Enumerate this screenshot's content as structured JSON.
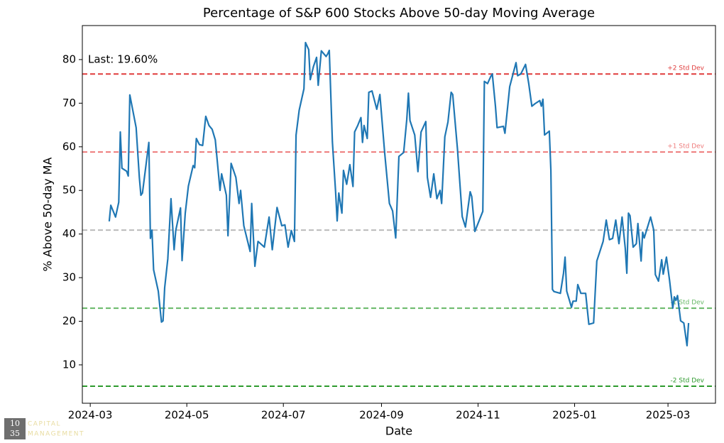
{
  "chart_data": {
    "type": "line",
    "title": "Percentage of S&P 600 Stocks Above 50-day Moving Average",
    "x_label": "Date",
    "y_label": "% Above 50-day MA",
    "annotation": "Last: 19.60%",
    "color": "#1f77b4",
    "xlim": [
      "2024-02-25",
      "2025-03-31"
    ],
    "xticks": [
      {
        "value": "2024-03-01",
        "label": "2024-03"
      },
      {
        "value": "2024-05-01",
        "label": "2024-05"
      },
      {
        "value": "2024-07-01",
        "label": "2024-07"
      },
      {
        "value": "2024-09-01",
        "label": "2024-09"
      },
      {
        "value": "2024-11-01",
        "label": "2024-11"
      },
      {
        "value": "2025-01-01",
        "label": "2025-01"
      },
      {
        "value": "2025-03-01",
        "label": "2025-03"
      }
    ],
    "ylim": [
      1.2,
      87.8
    ],
    "yticks": [
      10,
      20,
      30,
      40,
      50,
      60,
      70,
      80
    ],
    "hlines": [
      {
        "value": 76.7,
        "color": "#e03c3c",
        "label": "+2 Std Dev"
      },
      {
        "value": 58.8,
        "color": "#ee7b7b",
        "label": "+1 Std Dev"
      },
      {
        "value": 40.9,
        "color": "#bbbbbb"
      },
      {
        "value": 23.0,
        "color": "#66b866",
        "label": "-1 Std Dev"
      },
      {
        "value": 5.1,
        "color": "#2e9a2e",
        "label": "-2 Std Dev"
      }
    ],
    "x": [
      "2024-03-13",
      "2024-03-14",
      "2024-03-17",
      "2024-03-19",
      "2024-03-20",
      "2024-03-21",
      "2024-03-24",
      "2024-03-25",
      "2024-03-26",
      "2024-03-30",
      "2024-04-01",
      "2024-04-02",
      "2024-04-03",
      "2024-04-07",
      "2024-04-08",
      "2024-04-09",
      "2024-04-10",
      "2024-04-13",
      "2024-04-15",
      "2024-04-16",
      "2024-04-17",
      "2024-04-19",
      "2024-04-21",
      "2024-04-23",
      "2024-04-24",
      "2024-04-27",
      "2024-04-28",
      "2024-04-30",
      "2024-05-02",
      "2024-05-05",
      "2024-05-06",
      "2024-05-07",
      "2024-05-09",
      "2024-05-11",
      "2024-05-13",
      "2024-05-15",
      "2024-05-17",
      "2024-05-19",
      "2024-05-22",
      "2024-05-23",
      "2024-05-26",
      "2024-05-27",
      "2024-05-29",
      "2024-06-01",
      "2024-06-03",
      "2024-06-04",
      "2024-06-06",
      "2024-06-10",
      "2024-06-11",
      "2024-06-13",
      "2024-06-15",
      "2024-06-19",
      "2024-06-22",
      "2024-06-24",
      "2024-06-27",
      "2024-06-30",
      "2024-07-02",
      "2024-07-04",
      "2024-07-06",
      "2024-07-08",
      "2024-07-09",
      "2024-07-11",
      "2024-07-14",
      "2024-07-15",
      "2024-07-17",
      "2024-07-18",
      "2024-07-20",
      "2024-07-22",
      "2024-07-23",
      "2024-07-25",
      "2024-07-28",
      "2024-07-29",
      "2024-07-30",
      "2024-08-01",
      "2024-08-03",
      "2024-08-04",
      "2024-08-05",
      "2024-08-07",
      "2024-08-08",
      "2024-08-10",
      "2024-08-12",
      "2024-08-14",
      "2024-08-15",
      "2024-08-17",
      "2024-08-19",
      "2024-08-20",
      "2024-08-21",
      "2024-08-23",
      "2024-08-24",
      "2024-08-26",
      "2024-08-29",
      "2024-08-31",
      "2024-09-03",
      "2024-09-06",
      "2024-09-08",
      "2024-09-10",
      "2024-09-12",
      "2024-09-15",
      "2024-09-17",
      "2024-09-18",
      "2024-09-19",
      "2024-09-22",
      "2024-09-24",
      "2024-09-26",
      "2024-09-29",
      "2024-09-30",
      "2024-10-02",
      "2024-10-04",
      "2024-10-06",
      "2024-10-08",
      "2024-10-09",
      "2024-10-11",
      "2024-10-13",
      "2024-10-15",
      "2024-10-16",
      "2024-10-19",
      "2024-10-22",
      "2024-10-24",
      "2024-10-27",
      "2024-10-28",
      "2024-10-30",
      "2024-11-04",
      "2024-11-05",
      "2024-11-07",
      "2024-11-09",
      "2024-11-10",
      "2024-11-12",
      "2024-11-13",
      "2024-11-17",
      "2024-11-18",
      "2024-11-21",
      "2024-11-25",
      "2024-11-26",
      "2024-11-28",
      "2024-12-01",
      "2024-12-03",
      "2024-12-05",
      "2024-12-07",
      "2024-12-10",
      "2024-12-11",
      "2024-12-12",
      "2024-12-13",
      "2024-12-16",
      "2024-12-17",
      "2024-12-18",
      "2024-12-19",
      "2024-12-23",
      "2024-12-25",
      "2024-12-26",
      "2024-12-27",
      "2024-12-30",
      "2024-12-31",
      "2025-01-02",
      "2025-01-03",
      "2025-01-05",
      "2025-01-08",
      "2025-01-10",
      "2025-01-13",
      "2025-01-15",
      "2025-01-19",
      "2025-01-21",
      "2025-01-23",
      "2025-01-25",
      "2025-01-27",
      "2025-01-29",
      "2025-01-31",
      "2025-02-02",
      "2025-02-03",
      "2025-02-04",
      "2025-02-05",
      "2025-02-07",
      "2025-02-09",
      "2025-02-10",
      "2025-02-12",
      "2025-02-13",
      "2025-02-14",
      "2025-02-18",
      "2025-02-20",
      "2025-02-21",
      "2025-02-23",
      "2025-02-25",
      "2025-02-26",
      "2025-02-28",
      "2025-03-02",
      "2025-03-04",
      "2025-03-05",
      "2025-03-06",
      "2025-03-07",
      "2025-03-09",
      "2025-03-11",
      "2025-03-13",
      "2025-03-14"
    ],
    "values": [
      42.9,
      46.6,
      43.9,
      47.3,
      63.4,
      55.1,
      54.4,
      53.3,
      71.9,
      64.4,
      53.0,
      48.9,
      49.4,
      61.0,
      39.0,
      40.9,
      31.8,
      26.9,
      19.8,
      20.1,
      27.7,
      34.3,
      48.1,
      36.4,
      40.8,
      46.0,
      33.9,
      44.8,
      51.0,
      55.7,
      55.2,
      61.9,
      60.5,
      60.3,
      67.0,
      64.9,
      64.0,
      61.6,
      50.0,
      53.8,
      48.9,
      39.6,
      56.2,
      53.0,
      47.0,
      50.0,
      41.9,
      36.0,
      47.0,
      32.6,
      38.3,
      37.0,
      43.9,
      36.4,
      46.1,
      41.9,
      42.1,
      37.0,
      40.8,
      38.3,
      62.7,
      68.4,
      73.3,
      83.9,
      82.3,
      75.4,
      78.4,
      80.5,
      74.1,
      82.0,
      80.7,
      81.3,
      82.1,
      61.1,
      49.7,
      43.0,
      49.4,
      44.8,
      54.6,
      51.4,
      55.9,
      50.9,
      63.4,
      64.9,
      66.7,
      61.0,
      64.9,
      61.9,
      72.5,
      72.8,
      68.6,
      72.0,
      58.7,
      47.0,
      45.3,
      39.1,
      57.8,
      58.7,
      66.3,
      72.3,
      66.0,
      62.7,
      54.3,
      63.4,
      65.8,
      53.0,
      48.4,
      53.8,
      48.1,
      50.0,
      47.0,
      62.3,
      65.7,
      72.5,
      72.0,
      59.5,
      44.0,
      41.6,
      49.7,
      48.6,
      40.6,
      45.2,
      75.0,
      74.5,
      76.1,
      76.7,
      69.3,
      64.4,
      64.7,
      63.1,
      73.8,
      79.3,
      76.3,
      76.7,
      78.9,
      74.5,
      69.3,
      69.9,
      70.6,
      69.3,
      70.9,
      62.7,
      63.6,
      54.6,
      27.3,
      26.8,
      26.4,
      31.0,
      34.7,
      26.9,
      23.2,
      24.6,
      24.6,
      28.4,
      26.4,
      26.4,
      19.3,
      19.6,
      33.8,
      38.3,
      43.2,
      38.7,
      39.0,
      43.2,
      37.8,
      43.9,
      36.7,
      31.0,
      44.8,
      44.2,
      37.0,
      37.8,
      42.4,
      33.8,
      40.4,
      39.1,
      43.9,
      40.9,
      30.7,
      29.2,
      34.1,
      30.8,
      34.7,
      29.4,
      23.0,
      25.6,
      24.8,
      25.9,
      20.1,
      19.6,
      14.4,
      19.6
    ]
  },
  "watermark": {
    "number_top": "10",
    "number_bottom": "35",
    "line1": "CAPITAL",
    "line2": "MANAGEMENT"
  }
}
